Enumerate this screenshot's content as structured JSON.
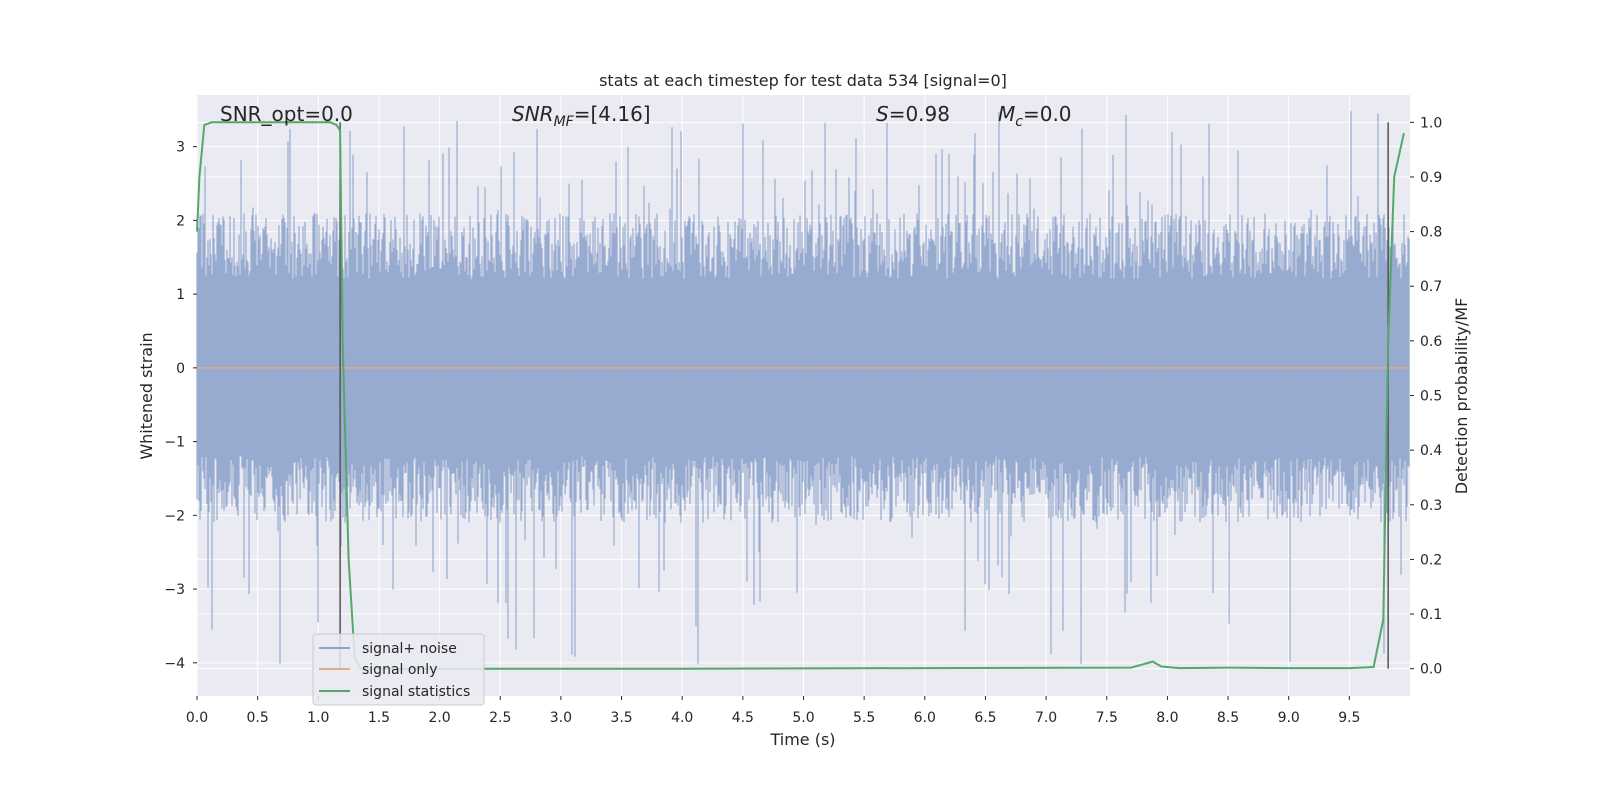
{
  "chart_data": {
    "type": "line",
    "title": "stats at each timestep for test data 534 [signal=0]",
    "xlabel": "Time (s)",
    "ylabel": "Whitened strain",
    "y2label": "Detection probability/MF",
    "xlim": [
      0.0,
      10.0
    ],
    "ylim": [
      -4.45,
      3.7
    ],
    "y2lim": [
      -0.05,
      1.05
    ],
    "xticks": [
      "0.0",
      "0.5",
      "1.0",
      "1.5",
      "2.0",
      "2.5",
      "3.0",
      "3.5",
      "4.0",
      "4.5",
      "5.0",
      "5.5",
      "6.0",
      "6.5",
      "7.0",
      "7.5",
      "8.0",
      "8.5",
      "9.0",
      "9.5"
    ],
    "yticks": [
      "3",
      "2",
      "1",
      "0",
      "−1",
      "−2",
      "−3",
      "−4"
    ],
    "y2ticks": [
      "1.0",
      "0.9",
      "0.8",
      "0.7",
      "0.6",
      "0.5",
      "0.4",
      "0.3",
      "0.2",
      "0.1",
      "0.0"
    ],
    "annotations": {
      "snr_opt": "SNR_opt=0.0",
      "snr_mf_sym": "SNR",
      "snr_mf_sub": "MF",
      "snr_mf_val": "=[4.16]",
      "s_sym": "S",
      "s_val": "=0.98",
      "mc_sym": "M",
      "mc_sub": "c",
      "mc_val": "=0.0"
    },
    "legend": {
      "placement": "lower-left",
      "entries": [
        "signal+ noise",
        "signal only",
        "signal statistics"
      ]
    },
    "series": [
      {
        "name": "signal+ noise",
        "axis": "left",
        "color": "#8ea3cb",
        "description_only": "noise band",
        "envelope": {
          "typical_low": -1.8,
          "typical_high": 1.8,
          "max": 3.5,
          "min": -4.05
        }
      },
      {
        "name": "signal only",
        "axis": "left",
        "color": "#e3a98c",
        "x": [
          0.0,
          10.0
        ],
        "y": [
          0.0,
          0.0
        ]
      },
      {
        "name": "signal statistics",
        "axis": "right",
        "color": "#55a868",
        "x": [
          0.0,
          0.02,
          0.06,
          0.12,
          0.3,
          0.6,
          0.9,
          1.1,
          1.15,
          1.18,
          1.2,
          1.25,
          1.3,
          1.35,
          2.0,
          4.0,
          6.0,
          7.7,
          7.8,
          7.88,
          7.95,
          8.1,
          8.5,
          9.0,
          9.5,
          9.7,
          9.78,
          9.82,
          9.87,
          9.95
        ],
        "y": [
          0.8,
          0.9,
          0.995,
          1.0,
          1.0,
          1.0,
          1.0,
          1.0,
          0.995,
          0.985,
          0.6,
          0.2,
          0.02,
          0.0,
          0.0,
          0.0,
          0.001,
          0.002,
          0.008,
          0.013,
          0.004,
          0.001,
          0.002,
          0.001,
          0.001,
          0.003,
          0.09,
          0.6,
          0.9,
          0.98
        ]
      }
    ],
    "vertical_markers": [
      1.18,
      9.82
    ]
  }
}
